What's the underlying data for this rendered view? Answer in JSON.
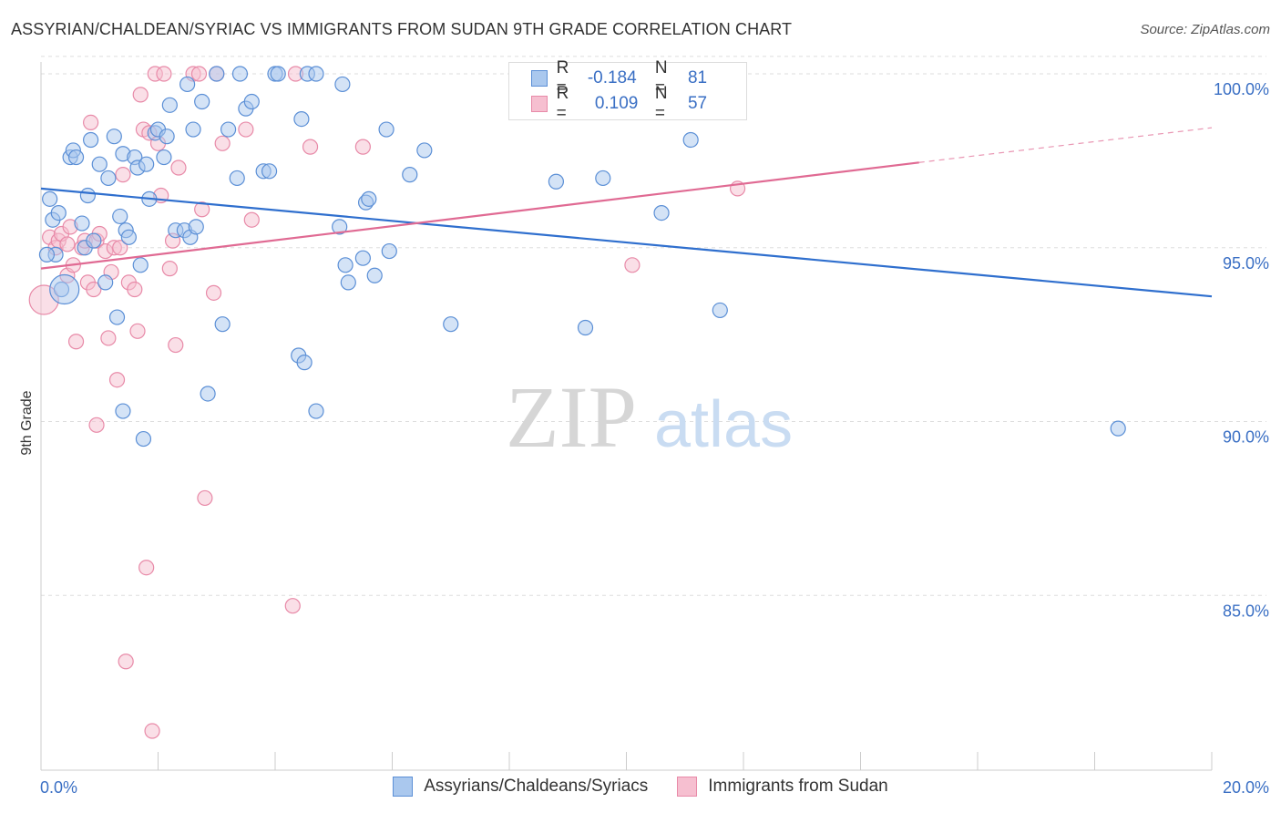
{
  "title": "ASSYRIAN/CHALDEAN/SYRIAC VS IMMIGRANTS FROM SUDAN 9TH GRADE CORRELATION CHART",
  "source": "Source: ZipAtlas.com",
  "watermark": {
    "zip": "ZIP",
    "atlas": "atlas"
  },
  "legend": {
    "r_label": "R =",
    "n_label": "N =",
    "rows": [
      {
        "r": "-0.184",
        "n": "81"
      },
      {
        "r": "0.109",
        "n": "57"
      }
    ]
  },
  "colors": {
    "blue_fill": "#aac8ee",
    "blue_stroke": "#5b8fd6",
    "blue_line": "#2f6fce",
    "pink_fill": "#f6bfd0",
    "pink_stroke": "#e88aa8",
    "pink_line": "#e06a93",
    "tick_label": "#3a6fc4",
    "grid": "#dddddd"
  },
  "chart_data": {
    "type": "scatter",
    "title": "ASSYRIAN/CHALDEAN/SYRIAC VS IMMIGRANTS FROM SUDAN 9TH GRADE CORRELATION CHART",
    "xlabel": "",
    "ylabel": "9th Grade",
    "xlim": [
      0,
      20
    ],
    "ylim": [
      80.5,
      100.5
    ],
    "x_tick_labels": [
      "0.0%",
      "20.0%"
    ],
    "y_ticks": [
      85,
      90,
      95,
      100
    ],
    "y_tick_labels": [
      "85.0%",
      "90.0%",
      "95.0%",
      "100.0%"
    ],
    "grid": "horizontal dashed",
    "legend_position": "top-center",
    "series": [
      {
        "name": "Assyrians/Chaldeans/Syriacs",
        "r": -0.184,
        "n": 81,
        "trend": {
          "x": [
            0,
            20
          ],
          "y": [
            96.7,
            93.6
          ]
        },
        "points": [
          [
            0.15,
            96.4
          ],
          [
            0.2,
            95.8
          ],
          [
            0.25,
            94.8
          ],
          [
            0.35,
            93.8
          ],
          [
            0.3,
            96.0
          ],
          [
            0.5,
            97.6
          ],
          [
            0.55,
            97.8
          ],
          [
            0.6,
            97.6
          ],
          [
            0.7,
            95.7
          ],
          [
            0.8,
            96.5
          ],
          [
            0.75,
            95.0
          ],
          [
            0.85,
            98.1
          ],
          [
            0.9,
            95.2
          ],
          [
            1.0,
            97.4
          ],
          [
            1.1,
            94.0
          ],
          [
            1.15,
            97.0
          ],
          [
            1.25,
            98.2
          ],
          [
            1.3,
            93.0
          ],
          [
            1.35,
            95.9
          ],
          [
            1.4,
            97.7
          ],
          [
            1.45,
            95.5
          ],
          [
            1.5,
            95.3
          ],
          [
            1.6,
            97.6
          ],
          [
            1.65,
            97.3
          ],
          [
            1.7,
            94.5
          ],
          [
            1.75,
            89.5
          ],
          [
            1.8,
            97.4
          ],
          [
            1.85,
            96.4
          ],
          [
            1.95,
            98.3
          ],
          [
            2.0,
            98.4
          ],
          [
            2.1,
            97.6
          ],
          [
            2.15,
            98.2
          ],
          [
            2.2,
            99.1
          ],
          [
            2.3,
            95.5
          ],
          [
            2.45,
            95.5
          ],
          [
            2.5,
            99.7
          ],
          [
            2.55,
            95.3
          ],
          [
            2.6,
            98.4
          ],
          [
            2.65,
            95.6
          ],
          [
            2.75,
            99.2
          ],
          [
            2.85,
            90.8
          ],
          [
            3.0,
            100.0
          ],
          [
            3.1,
            92.8
          ],
          [
            3.2,
            98.4
          ],
          [
            3.35,
            97.0
          ],
          [
            3.4,
            100.0
          ],
          [
            3.5,
            99.0
          ],
          [
            3.6,
            99.2
          ],
          [
            3.8,
            97.2
          ],
          [
            3.9,
            97.2
          ],
          [
            4.0,
            100.0
          ],
          [
            4.05,
            100.0
          ],
          [
            4.4,
            91.9
          ],
          [
            4.45,
            98.7
          ],
          [
            4.5,
            91.7
          ],
          [
            4.55,
            100.0
          ],
          [
            4.7,
            100.0
          ],
          [
            4.7,
            90.3
          ],
          [
            5.1,
            95.6
          ],
          [
            5.15,
            99.7
          ],
          [
            5.2,
            94.5
          ],
          [
            5.25,
            94.0
          ],
          [
            5.5,
            94.7
          ],
          [
            5.55,
            96.3
          ],
          [
            5.6,
            96.4
          ],
          [
            5.7,
            94.2
          ],
          [
            5.9,
            98.4
          ],
          [
            5.95,
            94.9
          ],
          [
            6.3,
            97.1
          ],
          [
            6.55,
            97.8
          ],
          [
            7.0,
            92.8
          ],
          [
            8.8,
            96.9
          ],
          [
            9.3,
            92.7
          ],
          [
            9.6,
            97.0
          ],
          [
            10.6,
            96.0
          ],
          [
            11.1,
            98.1
          ],
          [
            11.6,
            93.2
          ],
          [
            18.4,
            89.8
          ],
          [
            0.1,
            94.8
          ],
          [
            1.4,
            90.3
          ],
          [
            0.4,
            93.8
          ]
        ]
      },
      {
        "name": "Immigrants from Sudan",
        "r": 0.109,
        "n": 57,
        "trend": {
          "x": [
            0,
            15
          ],
          "y": [
            94.4,
            97.45
          ]
        },
        "trend_dashed": {
          "x": [
            15,
            20
          ],
          "y": [
            97.45,
            98.45
          ]
        },
        "points": [
          [
            0.05,
            93.5
          ],
          [
            0.15,
            95.3
          ],
          [
            0.25,
            95.0
          ],
          [
            0.3,
            95.2
          ],
          [
            0.35,
            95.4
          ],
          [
            0.45,
            95.1
          ],
          [
            0.45,
            94.2
          ],
          [
            0.5,
            95.6
          ],
          [
            0.55,
            94.5
          ],
          [
            0.6,
            92.3
          ],
          [
            0.7,
            95.0
          ],
          [
            0.75,
            95.2
          ],
          [
            0.8,
            94.0
          ],
          [
            0.85,
            98.6
          ],
          [
            0.9,
            93.8
          ],
          [
            0.95,
            95.2
          ],
          [
            0.95,
            89.9
          ],
          [
            1.0,
            95.4
          ],
          [
            1.1,
            94.9
          ],
          [
            1.15,
            92.4
          ],
          [
            1.2,
            94.3
          ],
          [
            1.25,
            95.0
          ],
          [
            1.3,
            91.2
          ],
          [
            1.35,
            95.0
          ],
          [
            1.4,
            97.1
          ],
          [
            1.45,
            83.1
          ],
          [
            1.5,
            94.0
          ],
          [
            1.6,
            93.8
          ],
          [
            1.65,
            92.6
          ],
          [
            1.7,
            99.4
          ],
          [
            1.75,
            98.4
          ],
          [
            1.8,
            85.8
          ],
          [
            1.85,
            98.3
          ],
          [
            1.9,
            81.1
          ],
          [
            1.95,
            100.0
          ],
          [
            2.0,
            98.0
          ],
          [
            2.05,
            96.5
          ],
          [
            2.1,
            100.0
          ],
          [
            2.2,
            94.4
          ],
          [
            2.25,
            95.2
          ],
          [
            2.3,
            92.2
          ],
          [
            2.35,
            97.3
          ],
          [
            2.6,
            100.0
          ],
          [
            2.7,
            100.0
          ],
          [
            2.75,
            96.1
          ],
          [
            2.8,
            87.8
          ],
          [
            2.95,
            93.7
          ],
          [
            3.0,
            100.0
          ],
          [
            3.1,
            98.0
          ],
          [
            3.5,
            98.4
          ],
          [
            3.6,
            95.8
          ],
          [
            4.3,
            84.7
          ],
          [
            4.35,
            100.0
          ],
          [
            4.6,
            97.9
          ],
          [
            5.5,
            97.9
          ],
          [
            10.1,
            94.5
          ],
          [
            11.9,
            96.7
          ]
        ]
      }
    ]
  }
}
